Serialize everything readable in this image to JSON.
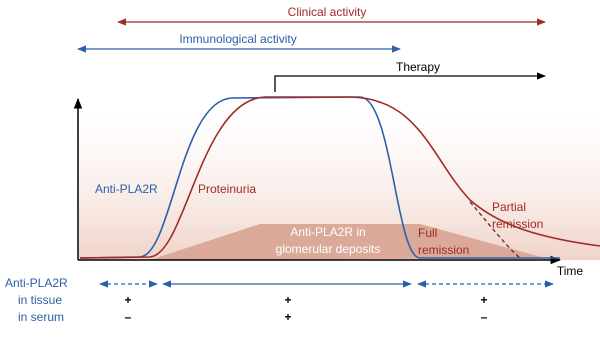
{
  "arrows": {
    "clinical": "Clinical activity",
    "immunological": "Immunological activity",
    "therapy": "Therapy"
  },
  "curves": {
    "antibody": "Anti-PLA2R",
    "proteinuria": "Proteinuria",
    "deposits": [
      "Anti-PLA2R in",
      "glomerular deposits"
    ],
    "full_remission": [
      "Full",
      "remission"
    ],
    "partial_remission": [
      "Partial",
      "remission"
    ]
  },
  "axis": {
    "x_label": "Time"
  },
  "table": {
    "title": "Anti-PLA2R",
    "rows": [
      {
        "label": "in tissue",
        "phases": [
          "+",
          "+",
          "+"
        ]
      },
      {
        "label": "in serum",
        "phases": [
          "–",
          "+",
          "–"
        ]
      }
    ]
  }
}
